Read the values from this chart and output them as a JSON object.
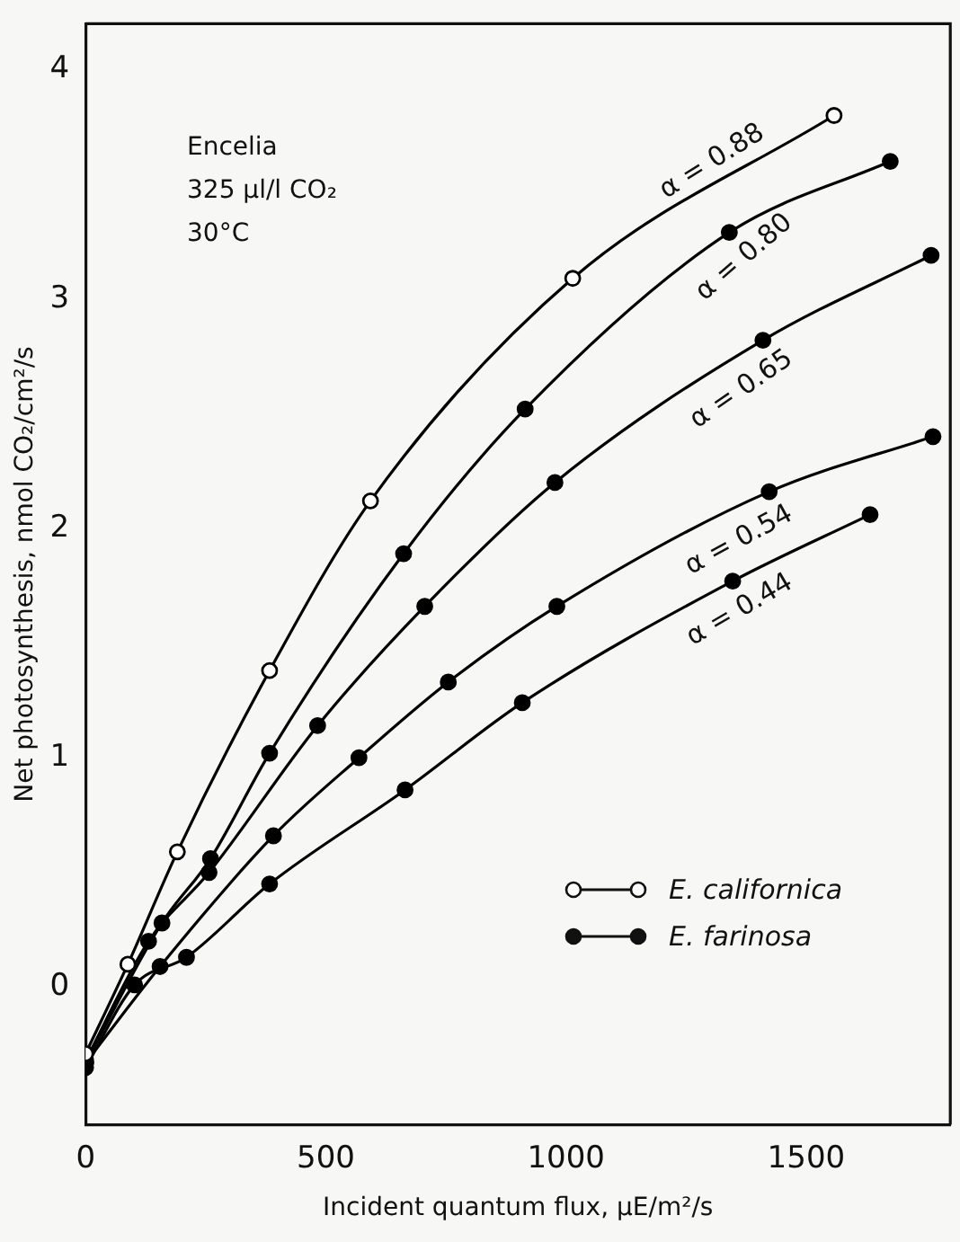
{
  "chart_data": {
    "type": "line",
    "xlabel": "Incident quantum flux, µE/m²/s",
    "ylabel": "Net photosynthesis, nmol CO₂/cm²/s",
    "xlim": [
      0,
      1800
    ],
    "xticks": [
      0,
      500,
      1000,
      1500
    ],
    "ylim": [
      -0.6,
      4.2
    ],
    "yticks": [
      0,
      1,
      2,
      3,
      4
    ],
    "grid": false,
    "legend": false,
    "marker": "circle",
    "line_style": "solid",
    "series": [
      {
        "name": "α = 0.88",
        "color": "#000000",
        "x": [
          0,
          88,
          191,
          383,
          593,
          1014,
          1558
        ],
        "values": [
          -0.29,
          0.1,
          0.59,
          1.38,
          2.12,
          3.09,
          3.8
        ]
      },
      {
        "name": "α = 0.80",
        "color": "#000000",
        "x": [
          0,
          159,
          260,
          383,
          662,
          915,
          1340,
          1675
        ],
        "values": [
          -0.33,
          0.28,
          0.56,
          1.02,
          1.89,
          2.52,
          3.29,
          3.6
        ]
      },
      {
        "name": "α = 0.65",
        "color": "#000000",
        "x": [
          0,
          131,
          257,
          483,
          706,
          977,
          1410,
          1760
        ],
        "values": [
          -0.32,
          0.2,
          0.5,
          1.14,
          1.66,
          2.2,
          2.82,
          3.19
        ]
      },
      {
        "name": "α = 0.54",
        "color": "#000000",
        "x": [
          0,
          155,
          391,
          569,
          755,
          981,
          1423,
          1764
        ],
        "values": [
          -0.33,
          0.09,
          0.66,
          1.0,
          1.33,
          1.66,
          2.16,
          2.4
        ]
      },
      {
        "name": "α = 0.44",
        "color": "#000000",
        "x": [
          0,
          102,
          210,
          383,
          665,
          909,
          1347,
          1633
        ],
        "values": [
          -0.35,
          0.01,
          0.13,
          0.45,
          0.86,
          1.24,
          1.77,
          2.06
        ]
      }
    ],
    "annotations": [
      "Encelia",
      "325 µl/l CO₂",
      "30°C",
      "E. californica",
      "E. farinosa"
    ]
  }
}
